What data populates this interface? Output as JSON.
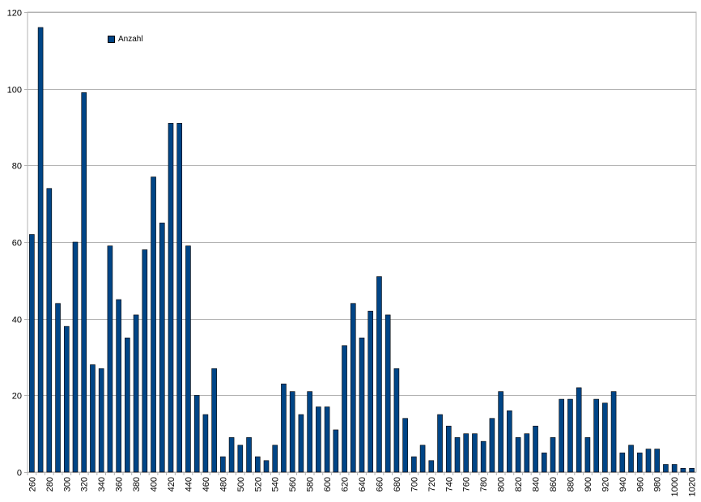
{
  "chart_data": {
    "type": "bar",
    "categories": [
      "260",
      "270",
      "280",
      "290",
      "300",
      "310",
      "320",
      "330",
      "340",
      "350",
      "360",
      "370",
      "380",
      "390",
      "400",
      "410",
      "420",
      "430",
      "440",
      "450",
      "460",
      "470",
      "480",
      "490",
      "500",
      "510",
      "520",
      "530",
      "540",
      "550",
      "560",
      "570",
      "580",
      "590",
      "600",
      "610",
      "620",
      "630",
      "640",
      "650",
      "660",
      "670",
      "680",
      "690",
      "700",
      "710",
      "720",
      "730",
      "740",
      "750",
      "760",
      "770",
      "780",
      "790",
      "800",
      "810",
      "820",
      "830",
      "840",
      "850",
      "860",
      "870",
      "880",
      "890",
      "900",
      "910",
      "920",
      "930",
      "940",
      "950",
      "960",
      "970",
      "980",
      "990",
      "1000",
      "1010",
      "1020"
    ],
    "tick_labels": [
      "260",
      "",
      "280",
      "",
      "300",
      "",
      "320",
      "",
      "340",
      "",
      "360",
      "",
      "380",
      "",
      "400",
      "",
      "420",
      "",
      "440",
      "",
      "460",
      "",
      "480",
      "",
      "500",
      "",
      "520",
      "",
      "540",
      "",
      "560",
      "",
      "580",
      "",
      "600",
      "",
      "620",
      "",
      "640",
      "",
      "660",
      "",
      "680",
      "",
      "700",
      "",
      "720",
      "",
      "740",
      "",
      "760",
      "",
      "780",
      "",
      "800",
      "",
      "820",
      "",
      "840",
      "",
      "860",
      "",
      "880",
      "",
      "900",
      "",
      "920",
      "",
      "940",
      "",
      "960",
      "",
      "980",
      "",
      "1000",
      "",
      "1020"
    ],
    "series": [
      {
        "name": "Anzahl",
        "values": [
          62,
          116,
          74,
          44,
          38,
          60,
          99,
          28,
          27,
          59,
          45,
          35,
          41,
          58,
          77,
          65,
          91,
          91,
          59,
          20,
          15,
          27,
          4,
          9,
          7,
          9,
          4,
          3,
          7,
          23,
          21,
          15,
          21,
          17,
          17,
          11,
          33,
          44,
          35,
          42,
          51,
          41,
          27,
          14,
          4,
          7,
          3,
          15,
          12,
          9,
          10,
          10,
          8,
          14,
          21,
          16,
          9,
          10,
          12,
          5,
          9,
          19,
          19,
          22,
          9,
          19,
          18,
          21,
          5,
          7,
          5,
          6,
          6,
          2,
          2,
          1,
          1
        ],
        "color": "#004586"
      }
    ],
    "ylim": [
      0,
      120
    ],
    "yticks": [
      "0",
      "20",
      "40",
      "60",
      "80",
      "100",
      "120"
    ],
    "grid": true,
    "legend_position": "top-left",
    "title": "",
    "xlabel": "",
    "ylabel": ""
  }
}
